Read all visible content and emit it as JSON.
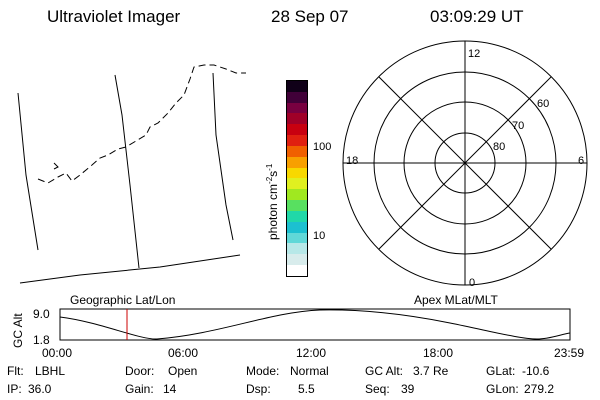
{
  "header": {
    "title": "Ultraviolet Imager",
    "date": "28 Sep 07",
    "time": "03:09:29 UT"
  },
  "colorbar": {
    "unit_label": "photon cm-2s-1",
    "ticks": [
      "100",
      "10"
    ],
    "colors": [
      "#ffffff",
      "#d8ecec",
      "#b7e8e8",
      "#60d8d8",
      "#1cc0d0",
      "#20d8a8",
      "#58e060",
      "#a0e820",
      "#e0f020",
      "#f8d800",
      "#f8a000",
      "#f06000",
      "#e02010",
      "#c80010",
      "#a00028",
      "#780040",
      "#400038",
      "#100018"
    ]
  },
  "map": {
    "label": "Geographic Lat/Lon"
  },
  "polar": {
    "label": "Apex MLat/MLT",
    "mlt_labels": {
      "top": "12",
      "left": "18",
      "right": "6",
      "bottom": "0"
    },
    "lat_labels": [
      "60",
      "70",
      "80"
    ]
  },
  "altitude_plot": {
    "ylabel": "GC Alt",
    "yticks": [
      "9.0",
      "1.8"
    ],
    "xticks": [
      "00:00",
      "06:00",
      "12:00",
      "18:00",
      "23:59"
    ],
    "marker_time": "03:09",
    "marker_color": "#cc0000"
  },
  "footer": {
    "row1": [
      {
        "key": "Flt:",
        "value": "LBHL"
      },
      {
        "key": "Door:",
        "value": "Open"
      },
      {
        "key": "Mode:",
        "value": "Normal"
      },
      {
        "key": "GC Alt:",
        "value": "3.7 Re"
      },
      {
        "key": "GLat:",
        "value": "-10.6"
      }
    ],
    "row2": [
      {
        "key": "IP:",
        "value": "36.0"
      },
      {
        "key": "Gain:",
        "value": "14"
      },
      {
        "key": "Dsp:",
        "value": "5.5"
      },
      {
        "key": "Seq:",
        "value": "39"
      },
      {
        "key": "GLon:",
        "value": "279.2"
      }
    ]
  }
}
